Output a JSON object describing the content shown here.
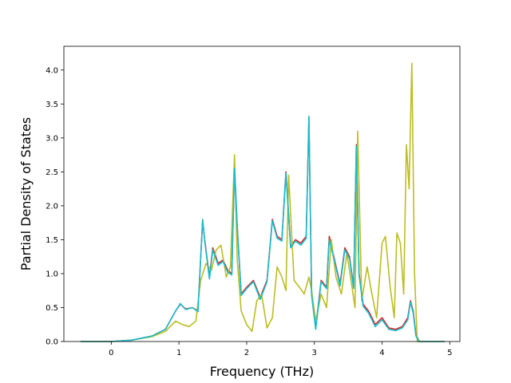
{
  "chart_data": {
    "type": "line",
    "title": "",
    "xlabel": "Frequency (THz)",
    "ylabel": "Partial Density of States",
    "xlim": [
      -0.7,
      5.15
    ],
    "ylim": [
      0,
      4.35
    ],
    "xticks": [
      0,
      1,
      2,
      3,
      4,
      5
    ],
    "yticks": [
      0.0,
      0.5,
      1.0,
      1.5,
      2.0,
      2.5,
      3.0,
      3.5,
      4.0
    ],
    "grid": false,
    "legend": "none",
    "series": [
      {
        "color": "#d62728",
        "x": [
          -0.45,
          0.0,
          0.3,
          0.6,
          0.8,
          0.95,
          1.02,
          1.1,
          1.2,
          1.28,
          1.35,
          1.38,
          1.45,
          1.5,
          1.58,
          1.65,
          1.72,
          1.78,
          1.82,
          1.86,
          1.92,
          2.0,
          2.1,
          2.2,
          2.3,
          2.38,
          2.45,
          2.52,
          2.58,
          2.65,
          2.72,
          2.8,
          2.88,
          2.92,
          2.96,
          3.02,
          3.1,
          3.18,
          3.22,
          3.3,
          3.38,
          3.45,
          3.52,
          3.58,
          3.62,
          3.66,
          3.72,
          3.8,
          3.9,
          4.0,
          4.1,
          4.2,
          4.3,
          4.38,
          4.42,
          4.46,
          4.5,
          4.55,
          4.7,
          4.92
        ],
        "y": [
          0,
          0,
          0.02,
          0.08,
          0.18,
          0.45,
          0.55,
          0.48,
          0.5,
          0.45,
          1.78,
          1.5,
          0.95,
          1.38,
          1.15,
          1.2,
          1.05,
          1.0,
          2.6,
          1.7,
          0.7,
          0.8,
          0.9,
          0.65,
          0.9,
          1.8,
          1.55,
          1.5,
          2.5,
          1.4,
          1.5,
          1.45,
          1.55,
          3.3,
          0.7,
          0.2,
          0.9,
          0.8,
          1.55,
          1.2,
          0.85,
          1.38,
          1.25,
          0.8,
          2.9,
          1.0,
          0.55,
          0.45,
          0.25,
          0.35,
          0.2,
          0.18,
          0.22,
          0.35,
          0.6,
          0.45,
          0.1,
          0,
          0,
          0
        ]
      },
      {
        "color": "#bcbd22",
        "x": [
          -0.45,
          0.0,
          0.3,
          0.6,
          0.8,
          0.95,
          1.05,
          1.15,
          1.25,
          1.32,
          1.4,
          1.48,
          1.55,
          1.62,
          1.7,
          1.76,
          1.82,
          1.86,
          1.92,
          2.0,
          2.08,
          2.15,
          2.22,
          2.3,
          2.38,
          2.45,
          2.52,
          2.58,
          2.62,
          2.7,
          2.78,
          2.85,
          2.92,
          2.96,
          3.02,
          3.1,
          3.18,
          3.25,
          3.32,
          3.4,
          3.48,
          3.55,
          3.6,
          3.64,
          3.7,
          3.78,
          3.85,
          3.92,
          4.0,
          4.05,
          4.12,
          4.18,
          4.22,
          4.27,
          4.32,
          4.36,
          4.4,
          4.44,
          4.48,
          4.52,
          4.7,
          4.92
        ],
        "y": [
          0,
          0,
          0.02,
          0.07,
          0.15,
          0.3,
          0.25,
          0.22,
          0.3,
          0.9,
          1.15,
          1.05,
          1.35,
          1.42,
          0.95,
          1.1,
          2.75,
          1.2,
          0.45,
          0.25,
          0.15,
          0.6,
          0.7,
          0.2,
          0.35,
          1.1,
          0.95,
          0.75,
          2.45,
          0.9,
          0.8,
          0.7,
          0.95,
          0.75,
          0.3,
          0.7,
          0.5,
          1.5,
          0.95,
          0.7,
          1.3,
          0.85,
          0.5,
          3.1,
          0.6,
          1.1,
          0.7,
          0.35,
          1.45,
          1.55,
          0.8,
          0.35,
          1.6,
          1.45,
          0.7,
          2.9,
          2.25,
          4.1,
          1.0,
          0,
          0,
          0
        ]
      },
      {
        "color": "#17becf",
        "x": [
          -0.45,
          0.0,
          0.3,
          0.6,
          0.8,
          0.95,
          1.02,
          1.1,
          1.2,
          1.28,
          1.35,
          1.38,
          1.45,
          1.5,
          1.58,
          1.65,
          1.72,
          1.78,
          1.82,
          1.86,
          1.92,
          2.0,
          2.1,
          2.2,
          2.3,
          2.38,
          2.45,
          2.52,
          2.58,
          2.65,
          2.72,
          2.8,
          2.88,
          2.92,
          2.96,
          3.02,
          3.1,
          3.18,
          3.22,
          3.3,
          3.38,
          3.45,
          3.52,
          3.58,
          3.62,
          3.66,
          3.72,
          3.8,
          3.9,
          4.0,
          4.1,
          4.2,
          4.3,
          4.38,
          4.42,
          4.46,
          4.5,
          4.55,
          4.7,
          4.92
        ],
        "y": [
          0,
          0,
          0.02,
          0.08,
          0.18,
          0.45,
          0.56,
          0.47,
          0.5,
          0.44,
          1.8,
          1.48,
          0.92,
          1.35,
          1.12,
          1.18,
          1.02,
          0.98,
          2.55,
          1.68,
          0.68,
          0.78,
          0.88,
          0.62,
          0.88,
          1.78,
          1.52,
          1.48,
          2.48,
          1.38,
          1.48,
          1.42,
          1.52,
          3.32,
          0.68,
          0.18,
          0.88,
          0.78,
          1.5,
          1.18,
          0.82,
          1.35,
          1.22,
          0.78,
          2.88,
          0.98,
          0.52,
          0.42,
          0.22,
          0.32,
          0.18,
          0.16,
          0.2,
          0.32,
          0.58,
          0.42,
          0.08,
          0,
          0,
          0
        ]
      }
    ]
  }
}
